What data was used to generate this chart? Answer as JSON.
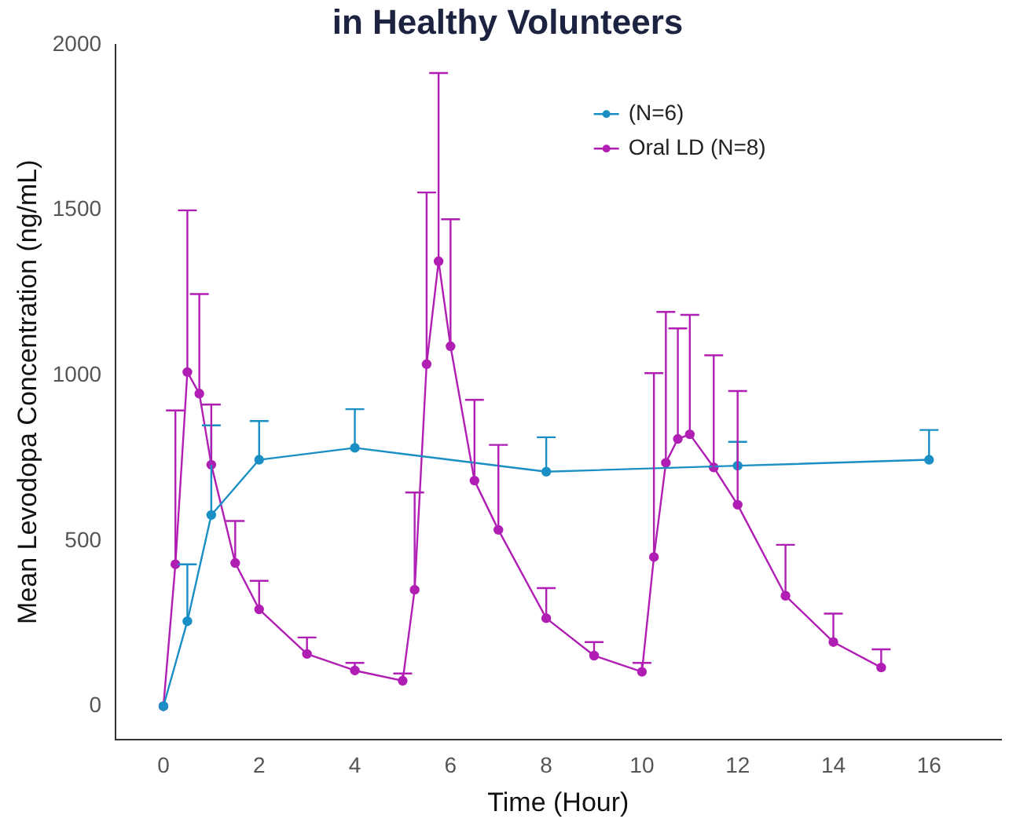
{
  "chart_data": {
    "type": "line",
    "title": "in Healthy Volunteers",
    "xlabel": "Time (Hour)",
    "ylabel": "Mean Levodopa Concentration (ng/mL)",
    "xlim": [
      -1,
      17.5
    ],
    "xticks": [
      0,
      2,
      4,
      6,
      8,
      10,
      12,
      14,
      16
    ],
    "ylim": [
      -100,
      2000
    ],
    "yticks": [
      0,
      500,
      1000,
      1500,
      2000
    ],
    "grid": false,
    "legend": "top right",
    "marker": "circle",
    "line_style": "solid",
    "series": [
      {
        "name": "(N=6)",
        "color": "#1a8fc4",
        "x": [
          0,
          0.5,
          1,
          2,
          4,
          8,
          12,
          16
        ],
        "values": [
          0,
          257,
          578,
          745,
          781,
          709,
          727,
          745
        ],
        "errors": [
          null,
          [
            257,
            429
          ],
          [
            578,
            849
          ],
          [
            745,
            862
          ],
          [
            781,
            898
          ],
          [
            709,
            813
          ],
          [
            727,
            799
          ],
          [
            745,
            835
          ]
        ]
      },
      {
        "name": "Oral LD (N=8)",
        "color": "#b01eb4",
        "x": [
          0,
          0.25,
          0.5,
          0.75,
          1,
          1.5,
          2,
          3,
          4,
          5,
          5.25,
          5.5,
          5.75,
          6,
          6.5,
          7,
          8,
          9,
          10,
          10.25,
          10.5,
          10.75,
          11,
          11.5,
          12,
          13,
          14,
          15
        ],
        "values": [
          0,
          429,
          1010,
          945,
          730,
          433,
          293,
          158,
          108,
          77,
          352,
          1034,
          1345,
          1088,
          682,
          533,
          266,
          153,
          104,
          451,
          736,
          808,
          822,
          722,
          609,
          334,
          194,
          117
        ],
        "errors": [
          null,
          [
            429,
            894
          ],
          [
            1010,
            1499
          ],
          [
            945,
            1246
          ],
          [
            730,
            912
          ],
          [
            433,
            560
          ],
          [
            293,
            379
          ],
          [
            158,
            208
          ],
          [
            108,
            131
          ],
          [
            77,
            99
          ],
          [
            352,
            646
          ],
          [
            1034,
            1553
          ],
          [
            1345,
            1914
          ],
          [
            1088,
            1472
          ],
          [
            682,
            926
          ],
          [
            533,
            790
          ],
          [
            266,
            357
          ],
          [
            153,
            194
          ],
          [
            104,
            131
          ],
          [
            451,
            1007
          ],
          [
            736,
            1192
          ],
          [
            808,
            1142
          ],
          [
            822,
            1183
          ],
          [
            722,
            1061
          ],
          [
            609,
            953
          ],
          [
            334,
            488
          ],
          [
            194,
            280
          ],
          [
            117,
            172
          ]
        ]
      }
    ]
  }
}
